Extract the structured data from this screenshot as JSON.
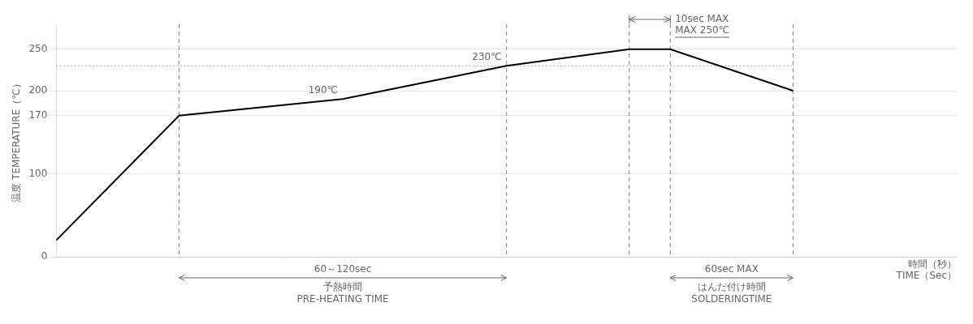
{
  "chart_data": {
    "type": "line",
    "x": [
      0,
      1.5,
      3.5,
      5.5,
      7.0,
      7.5,
      9.0
    ],
    "values": [
      20,
      170,
      190,
      230,
      250,
      250,
      200
    ],
    "color": "#000000",
    "xlim": [
      0,
      11
    ],
    "ylim": [
      0,
      280
    ],
    "yticks": [
      0,
      100,
      170,
      200,
      250
    ],
    "tick_labels": "y",
    "grid": true,
    "y_label": "温度 TEMPERATURE（℃）",
    "x_label": [
      "時間（秒）",
      "TIME（Sec）"
    ],
    "vlines": [
      1.5,
      5.5,
      7.0,
      7.5,
      9.0
    ],
    "hlines": [
      {
        "y": 230,
        "x": [
          0,
          9.0
        ]
      }
    ],
    "annotations": [
      {
        "text": "190℃",
        "x": 3.5,
        "y": 190
      },
      {
        "text": "230℃",
        "x": 5.5,
        "y": 230
      }
    ],
    "brackets": [
      {
        "from": 7.0,
        "to": 7.5,
        "texts": [
          "10sec MAX",
          "MAX 250℃"
        ]
      }
    ],
    "spans": [
      {
        "from": 1.5,
        "to": 5.5,
        "above": "60～120sec",
        "below": [
          "予熱時間",
          "PRE-HEATING TIME"
        ]
      },
      {
        "from": 7.5,
        "to": 9.0,
        "above": "60sec MAX",
        "below": [
          "はんだ付け時間",
          "SOLDERINGTIME"
        ]
      }
    ]
  }
}
